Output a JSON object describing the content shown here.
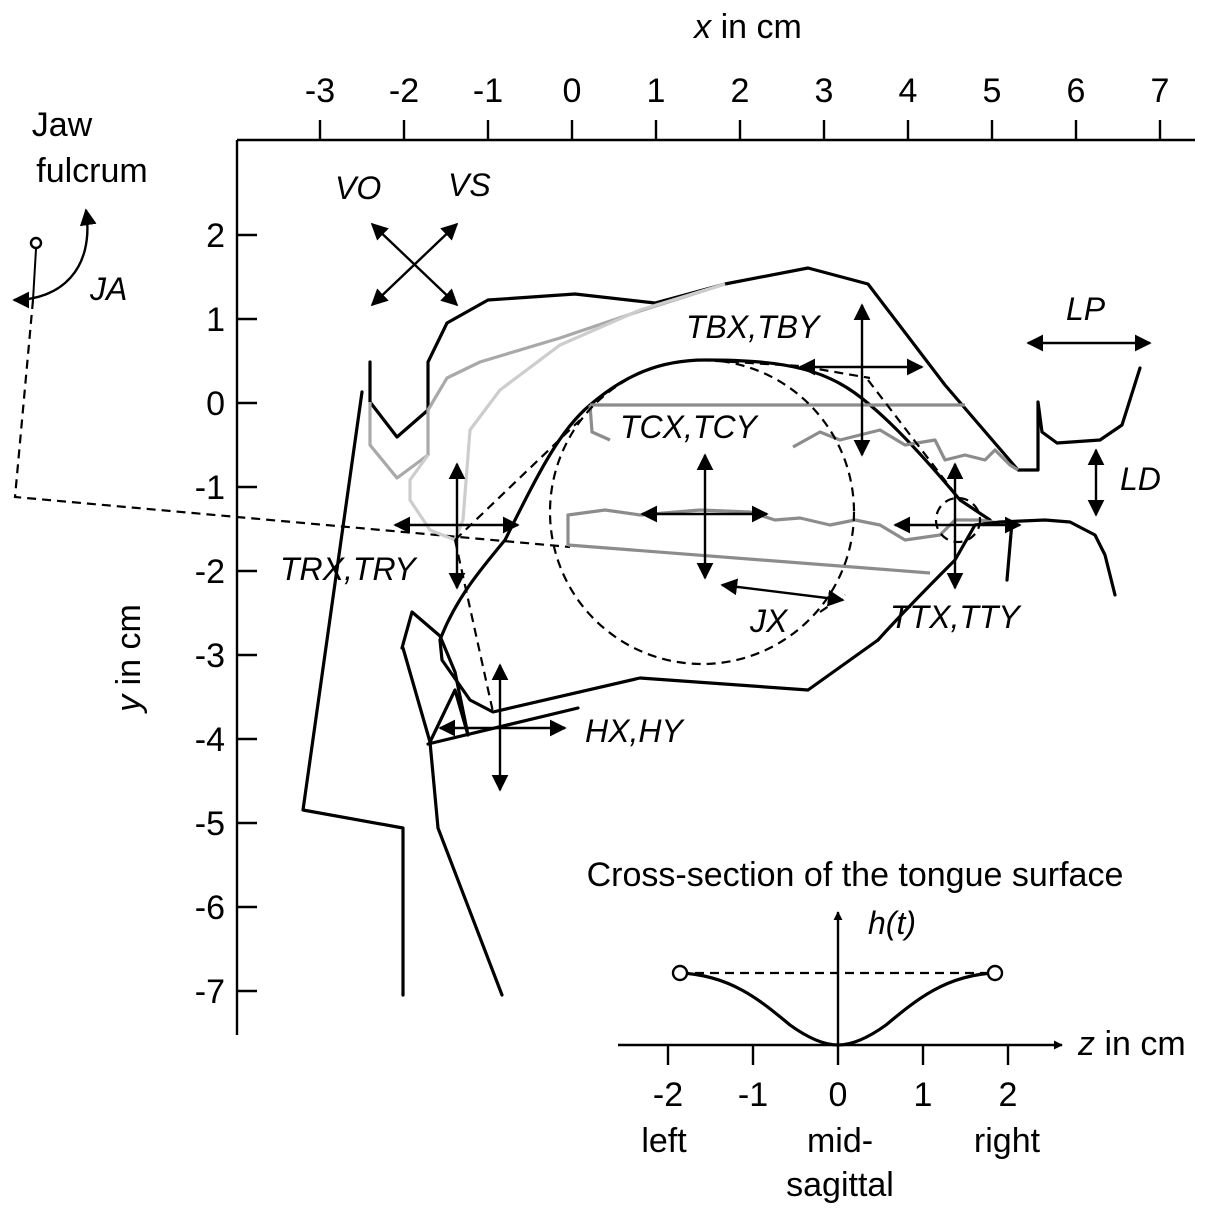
{
  "axes": {
    "x_title_italic": "x",
    "x_title_rest": " in cm",
    "y_title_italic": "y",
    "y_title_rest": " in cm",
    "x_ticks": [
      "-3",
      "-2",
      "-1",
      "0",
      "1",
      "2",
      "3",
      "4",
      "5",
      "6",
      "7"
    ],
    "y_ticks": [
      "2",
      "1",
      "0",
      "-1",
      "-2",
      "-3",
      "-4",
      "-5",
      "-6",
      "-7"
    ]
  },
  "labels": {
    "jaw_line1": "Jaw",
    "jaw_line2": "fulcrum",
    "ja": "JA",
    "vo": "VO",
    "vs": "VS",
    "tbx_tby": "TBX,TBY",
    "lp": "LP",
    "tcx_tcy": "TCX,TCY",
    "ld": "LD",
    "trx_try": "TRX,TRY",
    "jx": "JX",
    "ttx_tty": "TTX,TTY",
    "hx_hy": "HX,HY"
  },
  "inset": {
    "title": "Cross-section of the tongue surface",
    "h_label": "h(t)",
    "z_label_italic": "z",
    "z_label_rest": " in cm",
    "ticks": [
      "-2",
      "-1",
      "0",
      "1",
      "2"
    ],
    "left": "left",
    "mid_line1": "mid-",
    "mid_line2": "sagittal",
    "right": "right"
  }
}
